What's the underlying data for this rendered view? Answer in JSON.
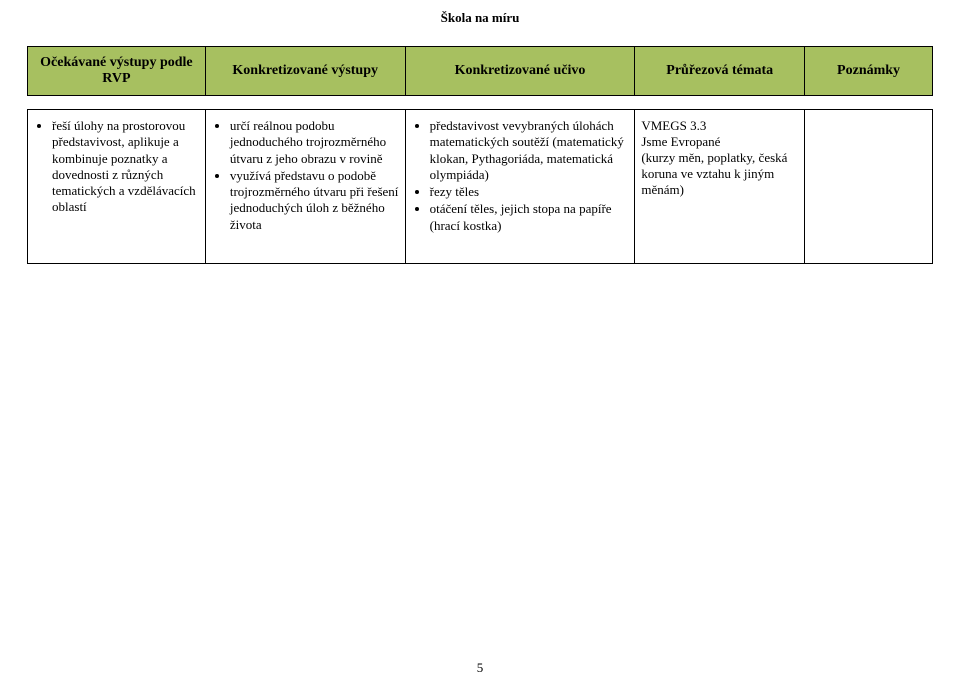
{
  "document": {
    "title": "Škola na míru",
    "page_number": "5"
  },
  "table": {
    "headers": {
      "c1": "Očekávané výstupy podle RVP",
      "c2": "Konkretizované výstupy",
      "c3": "Konkretizované učivo",
      "c4": "Průřezová témata",
      "c5": "Poznámky"
    },
    "row": {
      "col1": {
        "items": [
          "řeší úlohy na prostorovou představivost, aplikuje a kombinuje poznatky a dovednosti z různých tematických a vzdělávacích oblastí"
        ]
      },
      "col2": {
        "items": [
          "určí reálnou podobu jednoduchého trojrozměrného útvaru z jeho obrazu v rovině",
          "využívá představu o podobě trojrozměrného útvaru při řešení jednoduchých úloh z běžného života"
        ]
      },
      "col3": {
        "items": [
          "představivost vevybraných úlohách matematických soutěží (matematický klokan, Pythagoriáda, matematická olympiáda)",
          "řezy těles",
          "otáčení těles, jejich stopa na papíře (hrací kostka)"
        ]
      },
      "col4": {
        "line1": "VMEGS 3.3",
        "line2": "Jsme Evropané",
        "line3": "(kurzy měn, poplatky, česká koruna ve vztahu k jiným měnám)"
      },
      "col5": ""
    }
  },
  "style": {
    "header_bg": "#a7c060",
    "font_family": "Times New Roman",
    "body_fontsize": 13,
    "header_fontsize": 14,
    "border_color": "#000000",
    "background_color": "#ffffff"
  }
}
